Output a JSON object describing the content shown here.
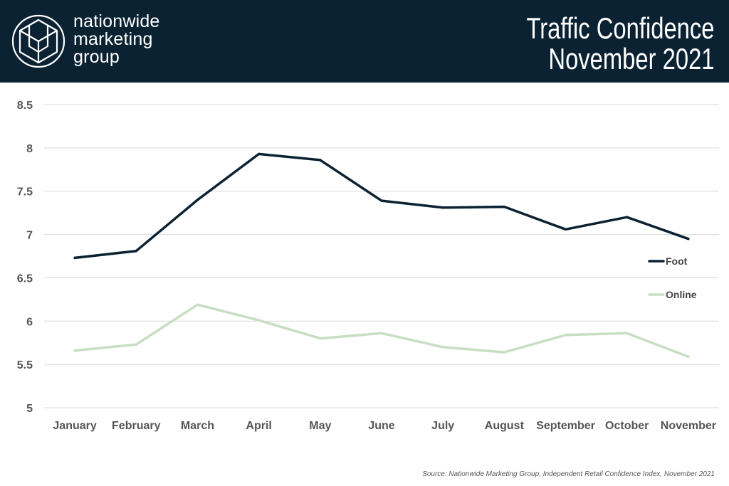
{
  "header": {
    "brand_lines": [
      "nationwide",
      "marketing",
      "group"
    ],
    "title_lines": [
      "Traffic Confidence",
      "November 2021"
    ],
    "background_color": "#0b2233"
  },
  "chart_data": {
    "type": "line",
    "categories": [
      "January",
      "February",
      "March",
      "April",
      "May",
      "June",
      "July",
      "August",
      "September",
      "October",
      "November"
    ],
    "series": [
      {
        "name": "Foot",
        "color": "#0b2233",
        "values": [
          6.73,
          6.81,
          7.4,
          7.93,
          7.86,
          7.39,
          7.31,
          7.32,
          7.06,
          7.2,
          6.95
        ]
      },
      {
        "name": "Online",
        "color": "#c8dec3",
        "values": [
          5.66,
          5.73,
          6.19,
          6.01,
          5.8,
          5.86,
          5.7,
          5.64,
          5.84,
          5.86,
          5.59
        ]
      }
    ],
    "ylim": [
      5,
      8.5
    ],
    "yticks": [
      "5",
      "5.5",
      "6",
      "6.5",
      "7",
      "7.5",
      "8",
      "8.5"
    ],
    "grid": true,
    "legend_position": "right"
  },
  "source": "Source: Nationwide Marketing Group, Independent Retail Confidence Index, November 2021"
}
